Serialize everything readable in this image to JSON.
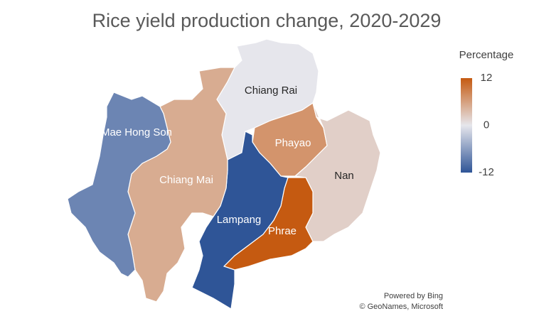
{
  "chart_data": {
    "type": "choropleth",
    "title": "Rice yield production change, 2020-2029",
    "regions": [
      "Chiang Rai",
      "Phayao",
      "Nan",
      "Phrae",
      "Lampang",
      "Chiang Mai",
      "Mae Hong Son"
    ],
    "values": [
      0,
      7,
      2,
      12,
      -12,
      5,
      -8
    ],
    "colorbar": {
      "title": "Percentage",
      "lim": [
        -12,
        12
      ],
      "ticks": [
        -12,
        0,
        12
      ],
      "colors": [
        "#2f5597",
        "#e6e6ec",
        "#c55a11"
      ]
    },
    "credits": [
      "Powered by Bing",
      "© GeoNames, Microsoft"
    ]
  }
}
